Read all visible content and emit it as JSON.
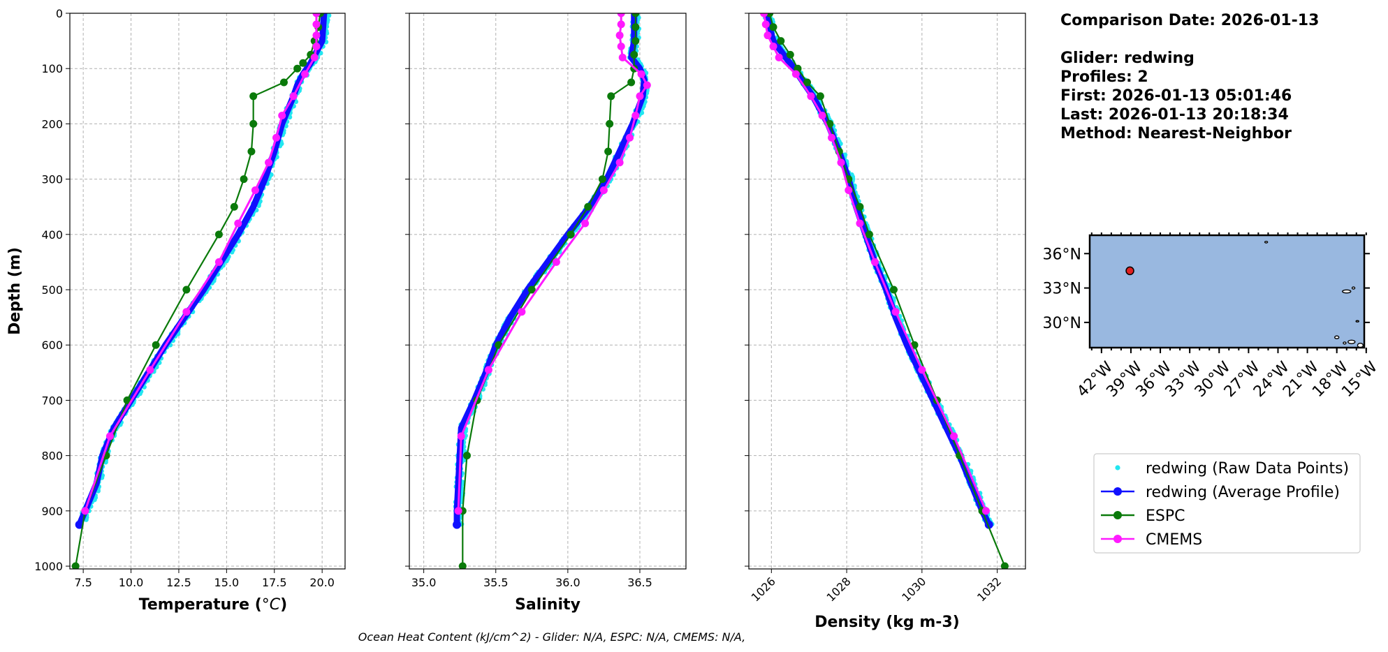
{
  "info": {
    "lines": [
      "Comparison Date: 2026-01-13",
      "",
      "Glider: redwing",
      "Profiles: 2",
      "First: 2026-01-13 05:01:46",
      "Last: 2026-01-13 20:18:34",
      "Method: Nearest-Neighbor"
    ]
  },
  "footer": "Ocean Heat Content (kJ/cm^2) - Glider: N/A,  ESPC: N/A,  CMEMS: N/A,",
  "colors": {
    "raw": "#22e6f0",
    "avg": "#1010ff",
    "espc": "#0a7a0a",
    "cmems": "#ff1aff",
    "ocean": "#99b8e0",
    "marker": "#e02020"
  },
  "legend": {
    "items": [
      {
        "label": "redwing (Raw Data Points)",
        "kind": "raw"
      },
      {
        "label": "redwing (Average Profile)",
        "kind": "avg"
      },
      {
        "label": "ESPC",
        "kind": "espc"
      },
      {
        "label": "CMEMS",
        "kind": "cmems"
      }
    ]
  },
  "map": {
    "lat_ticks": [
      "36°N",
      "33°N",
      "30°N"
    ],
    "lon_ticks": [
      "42°W",
      "39°W",
      "36°W",
      "33°W",
      "30°W",
      "27°W",
      "24°W",
      "21°W",
      "18°W",
      "15°W"
    ],
    "glider_position": {
      "lon": -39.1,
      "lat": 34.5
    }
  },
  "chart_data": [
    {
      "type": "line",
      "xlabel": "Temperature (°C)",
      "ylabel": "Depth (m)",
      "xlim": [
        6.8,
        21.2
      ],
      "ylim": [
        1005,
        0
      ],
      "xticks": [
        "7.5",
        "10.0",
        "12.5",
        "15.0",
        "17.5",
        "20.0"
      ],
      "xtick_values": [
        7.5,
        10.0,
        12.5,
        15.0,
        17.5,
        20.0
      ],
      "yticks": [
        "0",
        "100",
        "200",
        "300",
        "400",
        "500",
        "600",
        "700",
        "800",
        "900",
        "1000"
      ],
      "ytick_values": [
        0,
        100,
        200,
        300,
        400,
        500,
        600,
        700,
        800,
        900,
        1000
      ],
      "series": [
        {
          "name": "redwing (Average Profile)",
          "kind": "avg",
          "depth": [
            0,
            50,
            70,
            90,
            110,
            130,
            150,
            200,
            250,
            300,
            350,
            400,
            450,
            500,
            550,
            600,
            650,
            700,
            750,
            800,
            850,
            900,
            925
          ],
          "values": [
            20.1,
            20.0,
            19.7,
            19.4,
            19.0,
            18.7,
            18.5,
            17.9,
            17.5,
            17.0,
            16.4,
            15.6,
            14.7,
            13.8,
            12.8,
            11.8,
            10.9,
            10.0,
            9.1,
            8.5,
            8.2,
            7.6,
            7.3
          ]
        },
        {
          "name": "ESPC",
          "kind": "espc",
          "depth": [
            0,
            25,
            50,
            75,
            90,
            100,
            125,
            150,
            200,
            250,
            300,
            350,
            400,
            500,
            600,
            700,
            800,
            900,
            1000
          ],
          "values": [
            19.9,
            19.8,
            19.6,
            19.4,
            19.0,
            18.7,
            18.0,
            16.4,
            16.4,
            16.3,
            15.9,
            15.4,
            14.6,
            12.9,
            11.3,
            9.8,
            8.7,
            7.6,
            7.1
          ]
        },
        {
          "name": "CMEMS",
          "kind": "cmems",
          "depth": [
            0,
            20,
            40,
            60,
            80,
            110,
            150,
            185,
            225,
            270,
            320,
            380,
            450,
            540,
            645,
            765,
            900
          ],
          "values": [
            19.7,
            19.7,
            19.7,
            19.7,
            19.6,
            19.1,
            18.5,
            17.9,
            17.6,
            17.2,
            16.5,
            15.6,
            14.6,
            12.9,
            11.0,
            8.9,
            7.6
          ]
        }
      ]
    },
    {
      "type": "line",
      "xlabel": "Salinity",
      "xlim": [
        34.9,
        36.82
      ],
      "ylim": [
        1005,
        0
      ],
      "xticks": [
        "35.0",
        "35.5",
        "36.0",
        "36.5"
      ],
      "xtick_values": [
        35.0,
        35.5,
        36.0,
        36.5
      ],
      "series": [
        {
          "name": "redwing (Average Profile)",
          "kind": "avg",
          "depth": [
            0,
            50,
            80,
            100,
            120,
            150,
            200,
            250,
            300,
            350,
            400,
            450,
            500,
            550,
            600,
            650,
            700,
            750,
            800,
            850,
            900,
            925
          ],
          "values": [
            36.46,
            36.46,
            36.44,
            36.5,
            36.53,
            36.52,
            36.45,
            36.36,
            36.27,
            36.15,
            36.0,
            35.86,
            35.72,
            35.6,
            35.5,
            35.43,
            35.35,
            35.26,
            35.25,
            35.24,
            35.23,
            35.23
          ]
        },
        {
          "name": "ESPC",
          "kind": "espc",
          "depth": [
            0,
            25,
            50,
            75,
            100,
            125,
            150,
            200,
            250,
            300,
            350,
            400,
            500,
            600,
            700,
            800,
            900,
            1000
          ],
          "values": [
            36.47,
            36.47,
            36.47,
            36.46,
            36.46,
            36.44,
            36.3,
            36.29,
            36.28,
            36.24,
            36.14,
            36.02,
            35.75,
            35.52,
            35.37,
            35.3,
            35.27,
            35.27
          ]
        },
        {
          "name": "CMEMS",
          "kind": "cmems",
          "depth": [
            0,
            20,
            40,
            60,
            80,
            110,
            130,
            150,
            185,
            225,
            270,
            320,
            380,
            450,
            540,
            645,
            765,
            900
          ],
          "values": [
            36.37,
            36.37,
            36.36,
            36.37,
            36.38,
            36.51,
            36.55,
            36.5,
            36.47,
            36.43,
            36.36,
            36.25,
            36.12,
            35.92,
            35.68,
            35.45,
            35.26,
            35.24
          ]
        }
      ]
    },
    {
      "type": "line",
      "xlabel": "Density (kg m-3)",
      "xlim": [
        1025.4,
        1032.75
      ],
      "ylim": [
        1005,
        0
      ],
      "xticks": [
        "1026",
        "1028",
        "1030",
        "1032"
      ],
      "xtick_values": [
        1026,
        1028,
        1030,
        1032
      ],
      "series": [
        {
          "name": "redwing (Average Profile)",
          "kind": "avg",
          "depth": [
            0,
            50,
            100,
            150,
            200,
            250,
            300,
            350,
            400,
            450,
            500,
            550,
            600,
            650,
            700,
            750,
            800,
            850,
            900,
            925
          ],
          "values": [
            1025.85,
            1026.05,
            1026.6,
            1027.1,
            1027.5,
            1027.8,
            1028.05,
            1028.25,
            1028.5,
            1028.75,
            1029.05,
            1029.3,
            1029.6,
            1029.95,
            1030.3,
            1030.65,
            1031.0,
            1031.3,
            1031.6,
            1031.78
          ]
        },
        {
          "name": "ESPC",
          "kind": "espc",
          "depth": [
            0,
            25,
            50,
            75,
            100,
            125,
            150,
            200,
            250,
            300,
            350,
            400,
            500,
            600,
            700,
            800,
            900,
            1000
          ],
          "values": [
            1025.95,
            1026.05,
            1026.25,
            1026.5,
            1026.7,
            1026.95,
            1027.3,
            1027.55,
            1027.8,
            1028.05,
            1028.35,
            1028.6,
            1029.25,
            1029.8,
            1030.4,
            1031.0,
            1031.6,
            1032.2
          ]
        },
        {
          "name": "CMEMS",
          "kind": "cmems",
          "depth": [
            0,
            20,
            40,
            60,
            80,
            110,
            150,
            185,
            225,
            270,
            320,
            380,
            450,
            540,
            645,
            765,
            900
          ],
          "values": [
            1025.8,
            1025.85,
            1025.9,
            1026.05,
            1026.2,
            1026.65,
            1027.05,
            1027.35,
            1027.6,
            1027.85,
            1028.05,
            1028.35,
            1028.75,
            1029.3,
            1030.0,
            1030.85,
            1031.7
          ]
        }
      ]
    }
  ]
}
